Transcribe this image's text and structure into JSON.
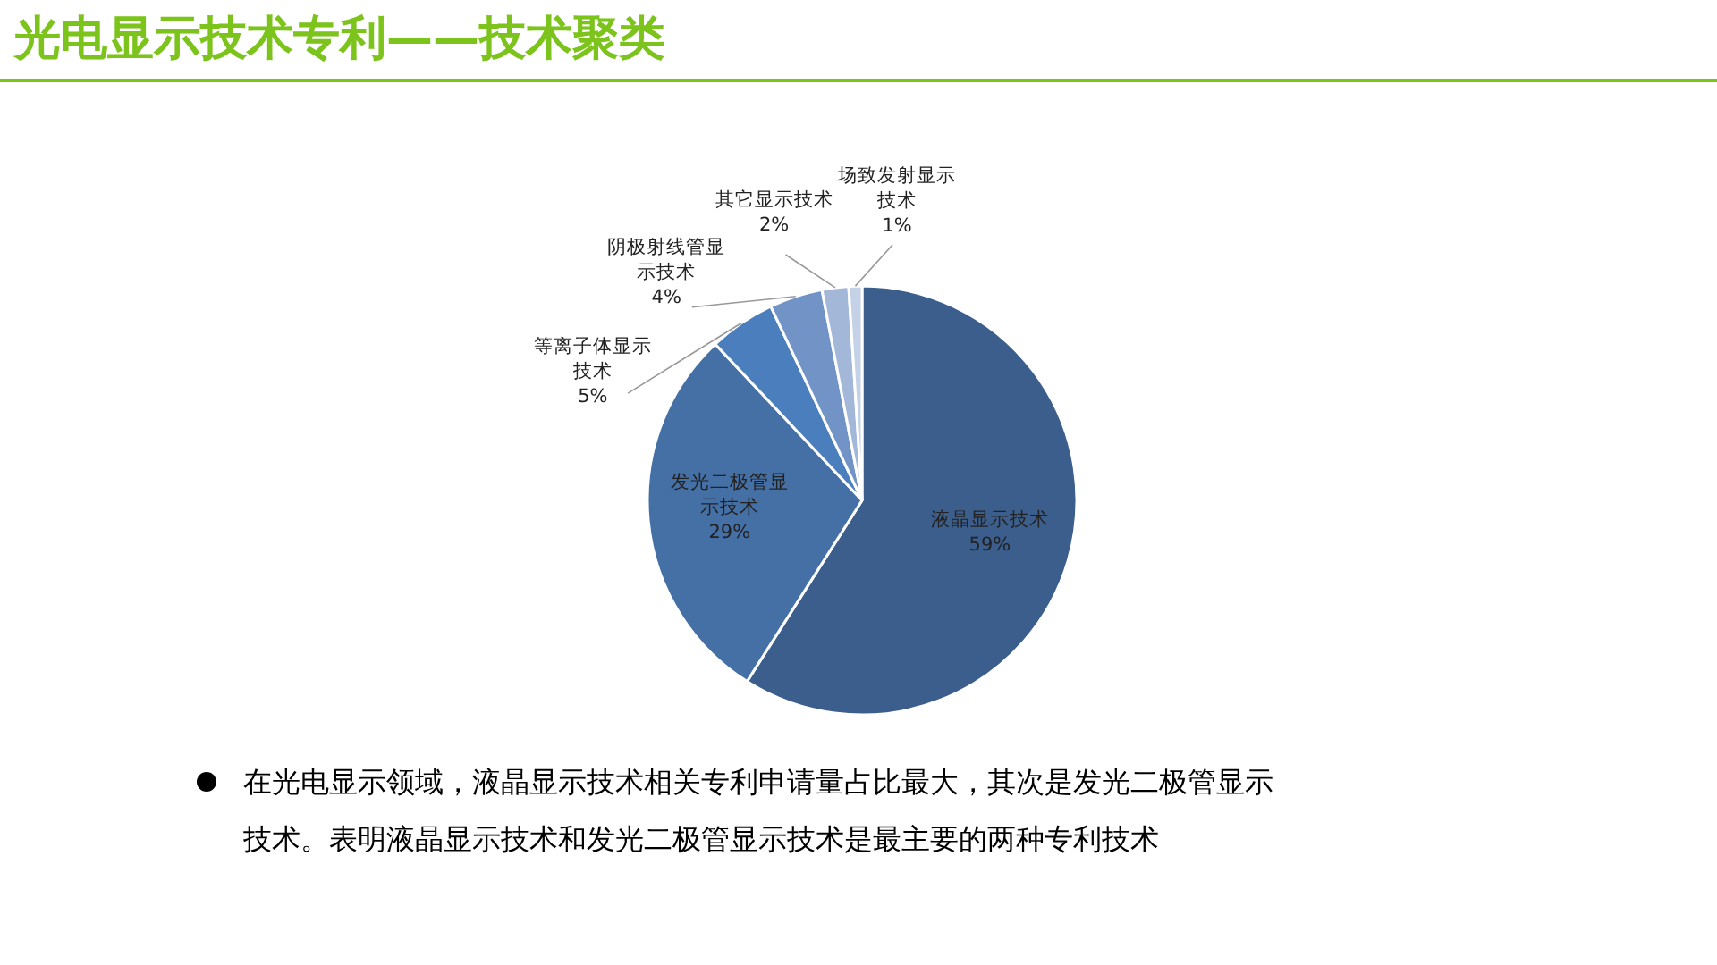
{
  "chart_data": {
    "type": "pie",
    "title": "光电显示技术专利——技术聚类",
    "categories": [
      "液晶显示技术",
      "发光二极管显示技术",
      "等离子体显示技术",
      "阴极射线管显示技术",
      "其它显示技术",
      "场致发射显示技术"
    ],
    "values": [
      59,
      29,
      5,
      4,
      2,
      1
    ],
    "colors": [
      "#3b5e8c",
      "#4470a6",
      "#4a7ebd",
      "#7193c6",
      "#a3b7d9",
      "#c5d1e6"
    ],
    "value_labels": [
      "59%",
      "29%",
      "5%",
      "4%",
      "2%",
      "1%"
    ],
    "annotations": [
      "在光电显示领域，液晶显示技术相关专利申请量占比最大，其次是发光二极管显示技术。表明液晶显示技术和发光二极管显示技术是最主要的两种专利技术"
    ]
  }
}
